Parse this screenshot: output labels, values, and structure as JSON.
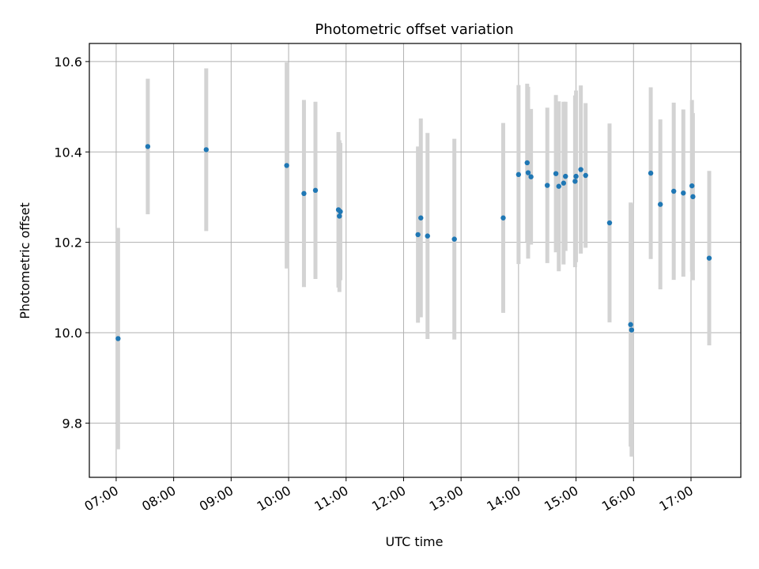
{
  "chart_data": {
    "type": "scatter",
    "title": "Photometric offset variation",
    "xlabel": "UTC time",
    "ylabel": "Photometric offset",
    "x_ticks": [
      "07:00",
      "08:00",
      "09:00",
      "10:00",
      "11:00",
      "12:00",
      "13:00",
      "14:00",
      "15:00",
      "16:00",
      "17:00"
    ],
    "y_ticks": [
      "9.8",
      "10.0",
      "10.2",
      "10.4",
      "10.6"
    ],
    "xlim": [
      "06:32",
      "17:52"
    ],
    "ylim": [
      9.68,
      10.64
    ],
    "grid": true,
    "colors": {
      "point": "#1f77b4",
      "errorbar": "#d3d3d3",
      "grid": "#b0b0b0"
    },
    "series": [
      {
        "points": [
          {
            "x": "07:02",
            "y": 9.987,
            "err": 0.245
          },
          {
            "x": "07:33",
            "y": 10.412,
            "err": 0.15
          },
          {
            "x": "08:34",
            "y": 10.405,
            "err": 0.18
          },
          {
            "x": "09:58",
            "y": 10.37,
            "err": 0.228
          },
          {
            "x": "10:16",
            "y": 10.308,
            "err": 0.207
          },
          {
            "x": "10:28",
            "y": 10.315,
            "err": 0.196
          },
          {
            "x": "10:52",
            "y": 10.272,
            "err": 0.172
          },
          {
            "x": "10:53",
            "y": 10.258,
            "err": 0.168
          },
          {
            "x": "10:54",
            "y": 10.268,
            "err": 0.152
          },
          {
            "x": "12:15",
            "y": 10.217,
            "err": 0.195
          },
          {
            "x": "12:18",
            "y": 10.254,
            "err": 0.22
          },
          {
            "x": "12:25",
            "y": 10.214,
            "err": 0.228
          },
          {
            "x": "12:53",
            "y": 10.207,
            "err": 0.222
          },
          {
            "x": "13:44",
            "y": 10.254,
            "err": 0.21
          },
          {
            "x": "14:00",
            "y": 10.35,
            "err": 0.198
          },
          {
            "x": "14:09",
            "y": 10.376,
            "err": 0.175
          },
          {
            "x": "14:10",
            "y": 10.354,
            "err": 0.19
          },
          {
            "x": "14:13",
            "y": 10.345,
            "err": 0.15
          },
          {
            "x": "14:30",
            "y": 10.326,
            "err": 0.172
          },
          {
            "x": "14:39",
            "y": 10.352,
            "err": 0.174
          },
          {
            "x": "14:42",
            "y": 10.324,
            "err": 0.188
          },
          {
            "x": "14:47",
            "y": 10.331,
            "err": 0.18
          },
          {
            "x": "14:49",
            "y": 10.346,
            "err": 0.165
          },
          {
            "x": "14:59",
            "y": 10.335,
            "err": 0.19
          },
          {
            "x": "15:00",
            "y": 10.346,
            "err": 0.19
          },
          {
            "x": "15:05",
            "y": 10.361,
            "err": 0.186
          },
          {
            "x": "15:10",
            "y": 10.348,
            "err": 0.16
          },
          {
            "x": "15:35",
            "y": 10.243,
            "err": 0.22
          },
          {
            "x": "15:57",
            "y": 10.018,
            "err": 0.27
          },
          {
            "x": "15:58",
            "y": 10.006,
            "err": 0.28
          },
          {
            "x": "16:18",
            "y": 10.353,
            "err": 0.19
          },
          {
            "x": "16:28",
            "y": 10.284,
            "err": 0.188
          },
          {
            "x": "16:42",
            "y": 10.313,
            "err": 0.196
          },
          {
            "x": "16:52",
            "y": 10.309,
            "err": 0.185
          },
          {
            "x": "17:01",
            "y": 10.325,
            "err": 0.19
          },
          {
            "x": "17:02",
            "y": 10.301,
            "err": 0.185
          },
          {
            "x": "17:19",
            "y": 10.165,
            "err": 0.193
          }
        ]
      }
    ]
  }
}
